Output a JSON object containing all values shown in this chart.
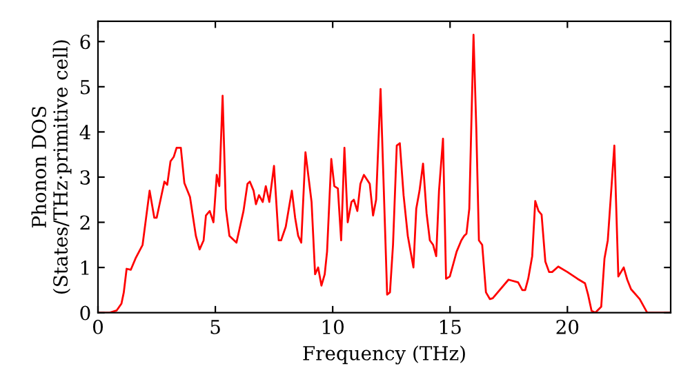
{
  "chart_data": {
    "type": "line",
    "xlabel": "Frequency (THz)",
    "ylabel": "Phonon DOS\n(States/THz·primitive cell)",
    "xlim": [
      0,
      24.4
    ],
    "ylim": [
      0,
      6.45
    ],
    "xticks": [
      0,
      5,
      10,
      15,
      20
    ],
    "yticks": [
      0,
      1,
      2,
      3,
      4,
      5,
      6
    ],
    "grid": false,
    "legend": false,
    "series": [
      {
        "color": "#ff0000",
        "x": [
          0,
          0.5,
          0.8,
          1.0,
          1.1,
          1.22,
          1.4,
          1.6,
          1.9,
          2.05,
          2.2,
          2.4,
          2.5,
          2.83,
          2.95,
          3.09,
          3.23,
          3.35,
          3.53,
          3.68,
          3.92,
          4.17,
          4.33,
          4.5,
          4.6,
          4.76,
          4.92,
          5.06,
          5.17,
          5.31,
          5.45,
          5.6,
          5.9,
          6.2,
          6.37,
          6.47,
          6.63,
          6.73,
          6.86,
          7.02,
          7.15,
          7.3,
          7.5,
          7.7,
          7.8,
          8.0,
          8.26,
          8.4,
          8.53,
          8.66,
          8.84,
          9.1,
          9.25,
          9.38,
          9.52,
          9.66,
          9.76,
          9.94,
          10.07,
          10.22,
          10.36,
          10.5,
          10.64,
          10.8,
          10.9,
          11.05,
          11.18,
          11.33,
          11.58,
          11.72,
          11.85,
          12.04,
          12.32,
          12.44,
          12.57,
          12.73,
          12.86,
          13.02,
          13.2,
          13.44,
          13.56,
          13.7,
          13.85,
          14.0,
          14.14,
          14.28,
          14.41,
          14.53,
          14.7,
          14.83,
          14.99,
          15.15,
          15.28,
          15.48,
          15.6,
          15.7,
          15.82,
          16.0,
          16.12,
          16.23,
          16.37,
          16.53,
          16.7,
          16.82,
          17.49,
          17.9,
          18.08,
          18.2,
          18.33,
          18.5,
          18.63,
          18.77,
          18.9,
          19.06,
          19.22,
          19.35,
          19.61,
          20.0,
          20.43,
          20.75,
          20.88,
          21.03,
          21.19,
          21.44,
          21.58,
          21.72,
          22.0,
          22.17,
          22.4,
          22.55,
          22.71,
          23.08,
          23.4,
          24.4
        ],
        "values": [
          0,
          0,
          0.05,
          0.2,
          0.45,
          0.97,
          0.95,
          1.2,
          1.5,
          2.1,
          2.7,
          2.1,
          2.1,
          2.9,
          2.83,
          3.35,
          3.45,
          3.65,
          3.65,
          2.87,
          2.56,
          1.7,
          1.4,
          1.6,
          2.15,
          2.25,
          2.0,
          3.05,
          2.8,
          4.8,
          2.3,
          1.7,
          1.55,
          2.25,
          2.85,
          2.9,
          2.7,
          2.4,
          2.6,
          2.45,
          2.8,
          2.45,
          3.25,
          1.6,
          1.6,
          1.9,
          2.7,
          2.1,
          1.7,
          1.55,
          3.55,
          2.45,
          0.85,
          1.0,
          0.6,
          0.85,
          1.35,
          3.4,
          2.8,
          2.75,
          1.6,
          3.65,
          2.0,
          2.45,
          2.5,
          2.25,
          2.85,
          3.05,
          2.85,
          2.15,
          2.5,
          4.95,
          0.4,
          0.45,
          1.5,
          3.7,
          3.75,
          2.6,
          1.7,
          1.0,
          2.3,
          2.7,
          3.3,
          2.2,
          1.6,
          1.5,
          1.25,
          2.7,
          3.85,
          0.75,
          0.8,
          1.1,
          1.35,
          1.6,
          1.7,
          1.75,
          2.3,
          6.15,
          4.05,
          1.6,
          1.5,
          0.45,
          0.3,
          0.32,
          0.73,
          0.67,
          0.5,
          0.5,
          0.75,
          1.25,
          2.47,
          2.25,
          2.17,
          1.13,
          0.9,
          0.9,
          1.02,
          0.9,
          0.75,
          0.65,
          0.4,
          0.04,
          0,
          0.13,
          1.2,
          1.6,
          3.7,
          0.8,
          1.0,
          0.73,
          0.52,
          0.3,
          0,
          0
        ]
      }
    ]
  }
}
